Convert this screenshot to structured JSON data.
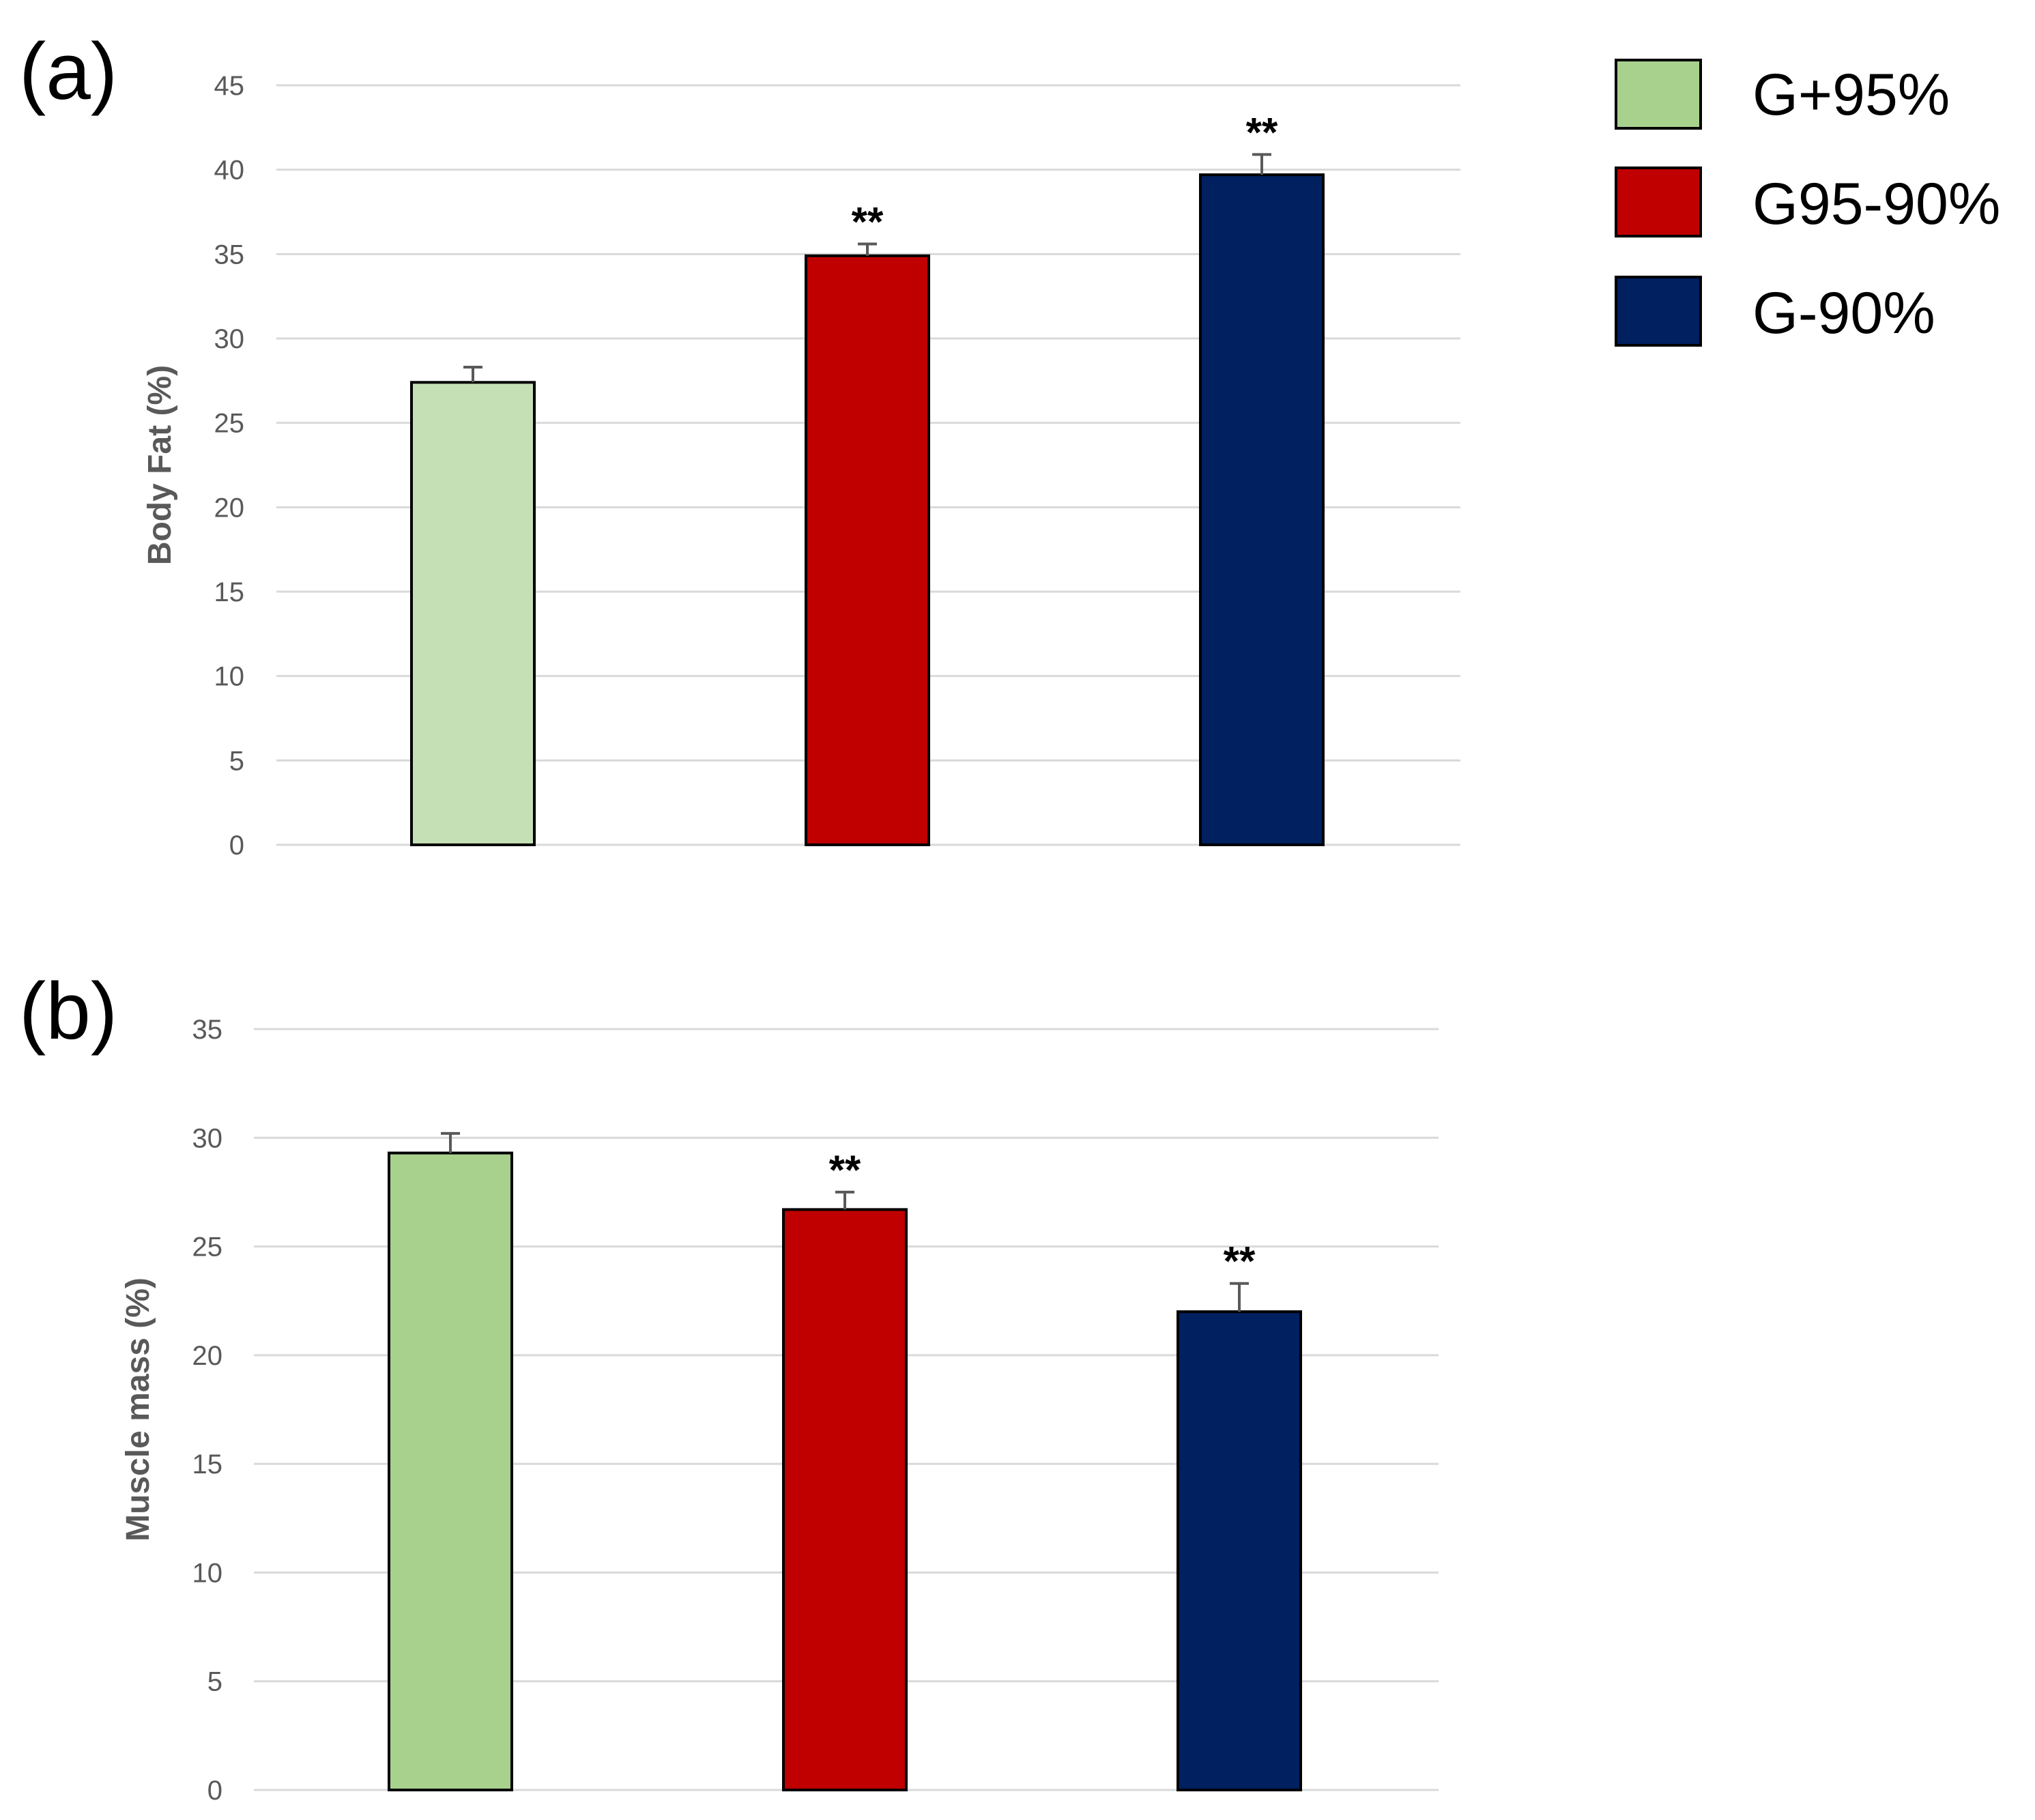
{
  "legend": [
    {
      "label": "G+95%",
      "color": "#a9d18e"
    },
    {
      "label": "G95-90%",
      "color": "#c00000"
    },
    {
      "label": "G-90%",
      "color": "#002060"
    }
  ],
  "chart_data": [
    {
      "type": "bar",
      "panel_label": "(a)",
      "title": "",
      "ylabel": "Body Fat (%)",
      "xlabel": "",
      "ylim": [
        0,
        45
      ],
      "yticks": [
        0,
        5,
        10,
        15,
        20,
        25,
        30,
        35,
        40,
        45
      ],
      "grid": true,
      "categories": [
        "G+95%",
        "G95-90%",
        "G-90%"
      ],
      "values": [
        27.4,
        34.9,
        39.7
      ],
      "errors": [
        0.9,
        0.7,
        1.2
      ],
      "significance": [
        "",
        "**",
        "**"
      ],
      "colors": [
        "#c5e0b4",
        "#c00000",
        "#002060"
      ]
    },
    {
      "type": "bar",
      "panel_label": "(b)",
      "title": "",
      "ylabel": "Muscle mass (%)",
      "xlabel": "",
      "ylim": [
        0,
        35
      ],
      "yticks": [
        0,
        5,
        10,
        15,
        20,
        25,
        30,
        35
      ],
      "grid": true,
      "categories": [
        "G+95%",
        "G95-90%",
        "G-90%"
      ],
      "values": [
        29.3,
        26.7,
        22.0
      ],
      "errors": [
        0.9,
        0.8,
        1.3
      ],
      "significance": [
        "",
        "**",
        "**"
      ],
      "colors": [
        "#a9d18e",
        "#c00000",
        "#002060"
      ]
    }
  ]
}
